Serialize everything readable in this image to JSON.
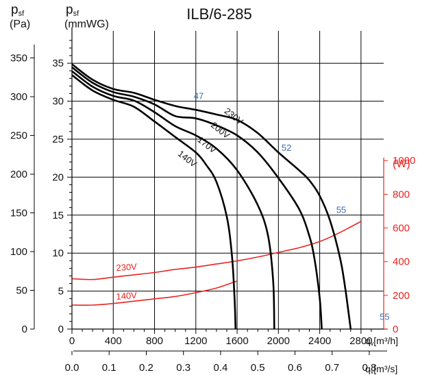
{
  "chart_data": {
    "type": "line",
    "title": "ILB/6-285",
    "left_axis_pa": {
      "symbol": "p",
      "subscript": "sf",
      "unit": "(Pa)",
      "ticks": [
        "0",
        "50",
        "100",
        "150",
        "200",
        "250",
        "300",
        "350"
      ],
      "range": [
        0,
        385
      ]
    },
    "left_axis_mmwg": {
      "symbol": "p",
      "subscript": "sf",
      "unit": "(mmWG)",
      "ticks": [
        "0",
        "5",
        "10",
        "15",
        "20",
        "25",
        "30",
        "35"
      ],
      "range": [
        0,
        39.25
      ]
    },
    "right_axis_power": {
      "unit": "(W)",
      "ticks": [
        "0",
        "200",
        "400",
        "600",
        "800",
        "1000"
      ],
      "range": [
        0,
        1770
      ]
    },
    "x_axis_m3h": {
      "label_sym": "q",
      "label_sub": "v",
      "label_unit": "[m³/h]",
      "ticks": [
        "0",
        "400",
        "800",
        "1200",
        "1600",
        "2000",
        "2400",
        "2800"
      ],
      "range": [
        0,
        3020
      ]
    },
    "x_axis_m3s": {
      "label_sym": "q",
      "label_sub": "v",
      "label_unit": "[m³/s]",
      "ticks": [
        "0.0",
        "0.1",
        "0.2",
        "0.3",
        "0.4",
        "0.5",
        "0.6",
        "0.7",
        "0.8"
      ]
    },
    "grid": true,
    "pressure_series": [
      {
        "name": "230V",
        "label_at": [
          1470,
          280
        ],
        "points": [
          [
            0,
            342
          ],
          [
            200,
            322
          ],
          [
            400,
            310
          ],
          [
            600,
            305
          ],
          [
            800,
            296
          ],
          [
            1000,
            288
          ],
          [
            1200,
            283
          ],
          [
            1400,
            277
          ],
          [
            1600,
            270
          ],
          [
            1800,
            253
          ],
          [
            2000,
            228
          ],
          [
            2200,
            205
          ],
          [
            2300,
            192
          ],
          [
            2400,
            172
          ],
          [
            2500,
            140
          ],
          [
            2600,
            90
          ],
          [
            2650,
            50
          ],
          [
            2700,
            0
          ]
        ]
      },
      {
        "name": "200V",
        "label_at": [
          1340,
          262
        ],
        "points": [
          [
            0,
            338
          ],
          [
            200,
            318
          ],
          [
            400,
            306
          ],
          [
            600,
            300
          ],
          [
            800,
            290
          ],
          [
            1000,
            275
          ],
          [
            1200,
            272
          ],
          [
            1400,
            263
          ],
          [
            1600,
            250
          ],
          [
            1800,
            228
          ],
          [
            2000,
            195
          ],
          [
            2200,
            155
          ],
          [
            2300,
            120
          ],
          [
            2350,
            90
          ],
          [
            2400,
            40
          ],
          [
            2420,
            0
          ]
        ]
      },
      {
        "name": "170V",
        "label_at": [
          1210,
          243
        ],
        "points": [
          [
            0,
            333
          ],
          [
            200,
            313
          ],
          [
            400,
            301
          ],
          [
            600,
            295
          ],
          [
            800,
            280
          ],
          [
            1000,
            262
          ],
          [
            1200,
            250
          ],
          [
            1400,
            233
          ],
          [
            1600,
            205
          ],
          [
            1800,
            160
          ],
          [
            1900,
            120
          ],
          [
            1950,
            60
          ],
          [
            1960,
            0
          ]
        ]
      },
      {
        "name": "140V",
        "label_at": [
          1020,
          225
        ],
        "points": [
          [
            0,
            328
          ],
          [
            200,
            308
          ],
          [
            400,
            296
          ],
          [
            600,
            287
          ],
          [
            800,
            268
          ],
          [
            1000,
            248
          ],
          [
            1200,
            228
          ],
          [
            1300,
            212
          ],
          [
            1400,
            190
          ],
          [
            1500,
            145
          ],
          [
            1550,
            95
          ],
          [
            1575,
            40
          ],
          [
            1585,
            0
          ]
        ]
      }
    ],
    "power_series": [
      {
        "name": "230V",
        "label_at": [
          430,
          75
        ],
        "points": [
          [
            0,
            65
          ],
          [
            200,
            64
          ],
          [
            400,
            67
          ],
          [
            600,
            70
          ],
          [
            800,
            73
          ],
          [
            1000,
            77
          ],
          [
            1200,
            80
          ],
          [
            1400,
            84
          ],
          [
            1600,
            88
          ],
          [
            1800,
            93
          ],
          [
            2000,
            99
          ],
          [
            2200,
            105
          ],
          [
            2400,
            113
          ],
          [
            2600,
            125
          ],
          [
            2800,
            139
          ]
        ]
      },
      {
        "name": "140V",
        "label_at": [
          430,
          38
        ],
        "points": [
          [
            0,
            31
          ],
          [
            200,
            31
          ],
          [
            400,
            33
          ],
          [
            600,
            36
          ],
          [
            800,
            39
          ],
          [
            1000,
            42
          ],
          [
            1200,
            47
          ],
          [
            1400,
            53
          ],
          [
            1600,
            62
          ]
        ]
      }
    ],
    "annotations": [
      {
        "text": "47",
        "at": [
          1180,
          297
        ]
      },
      {
        "text": "52",
        "at": [
          2030,
          230
        ]
      },
      {
        "text": "55",
        "at": [
          2560,
          150
        ]
      },
      {
        "text": "55",
        "at": [
          2980,
          12
        ]
      }
    ]
  }
}
